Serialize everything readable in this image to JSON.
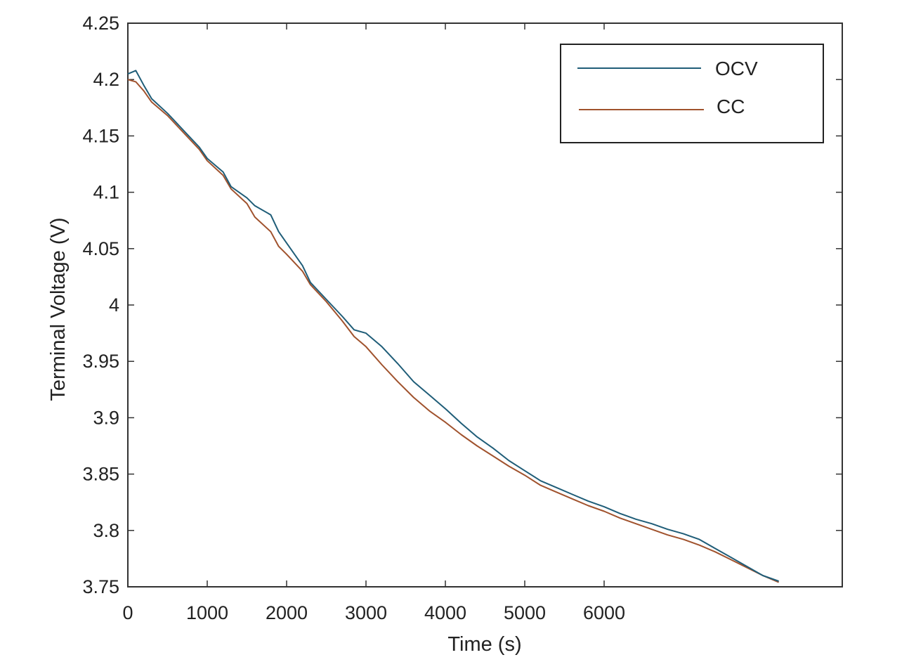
{
  "chart_data": {
    "type": "line",
    "title": "",
    "xlabel": "Time (s)",
    "ylabel": "Terminal Voltage (V)",
    "xlim": [
      0,
      9000
    ],
    "ylim": [
      3.75,
      4.25
    ],
    "x_ticks": [
      0,
      1000,
      2000,
      3000,
      4000,
      5000,
      6000
    ],
    "x_tick_labels": [
      "0",
      "1000",
      "2000",
      "3000",
      "4000",
      "5000",
      "6000"
    ],
    "y_ticks": [
      3.75,
      3.8,
      3.85,
      3.9,
      3.95,
      4.0,
      4.05,
      4.1,
      4.15,
      4.2,
      4.25
    ],
    "y_tick_labels": [
      "3.75",
      "3.8",
      "3.85",
      "3.9",
      "3.95",
      "4",
      "4.05",
      "4.1",
      "4.15",
      "4.2",
      "4.25"
    ],
    "grid": false,
    "legend_position": "top-right",
    "series": [
      {
        "name": "OCV",
        "color": "#1f5d78",
        "x": [
          0,
          100,
          200,
          300,
          500,
          700,
          900,
          1000,
          1200,
          1300,
          1500,
          1600,
          1800,
          1900,
          2000,
          2200,
          2300,
          2500,
          2700,
          2850,
          3000,
          3200,
          3400,
          3600,
          3800,
          4000,
          4200,
          4400,
          4600,
          4800,
          5000,
          5200,
          5400,
          5600,
          5800,
          6000,
          6200,
          6400,
          6600,
          6800,
          7000,
          7200,
          7400,
          7600,
          7800,
          8000,
          8200
        ],
        "y": [
          4.205,
          4.208,
          4.195,
          4.183,
          4.17,
          4.155,
          4.14,
          4.13,
          4.118,
          4.105,
          4.095,
          4.088,
          4.08,
          4.065,
          4.055,
          4.035,
          4.02,
          4.005,
          3.99,
          3.978,
          3.975,
          3.963,
          3.948,
          3.932,
          3.92,
          3.908,
          3.895,
          3.883,
          3.873,
          3.862,
          3.853,
          3.844,
          3.838,
          3.832,
          3.826,
          3.821,
          3.815,
          3.81,
          3.806,
          3.801,
          3.797,
          3.792,
          3.784,
          3.776,
          3.768,
          3.76,
          3.755
        ]
      },
      {
        "name": "CC",
        "color": "#a0522d",
        "x": [
          0,
          100,
          200,
          300,
          500,
          700,
          900,
          1000,
          1200,
          1300,
          1500,
          1600,
          1800,
          1900,
          2000,
          2200,
          2300,
          2500,
          2700,
          2850,
          3000,
          3200,
          3400,
          3600,
          3800,
          4000,
          4200,
          4400,
          4600,
          4800,
          5000,
          5200,
          5400,
          5600,
          5800,
          6000,
          6200,
          6400,
          6600,
          6800,
          7000,
          7200,
          7400,
          7600,
          7800,
          8000,
          8200
        ],
        "y": [
          4.2,
          4.198,
          4.19,
          4.18,
          4.168,
          4.153,
          4.138,
          4.128,
          4.115,
          4.103,
          4.09,
          4.078,
          4.065,
          4.052,
          4.045,
          4.03,
          4.018,
          4.003,
          3.986,
          3.972,
          3.963,
          3.947,
          3.932,
          3.918,
          3.906,
          3.896,
          3.885,
          3.875,
          3.866,
          3.857,
          3.849,
          3.84,
          3.834,
          3.828,
          3.822,
          3.817,
          3.811,
          3.806,
          3.801,
          3.796,
          3.792,
          3.787,
          3.781,
          3.774,
          3.767,
          3.76,
          3.754
        ]
      }
    ]
  }
}
